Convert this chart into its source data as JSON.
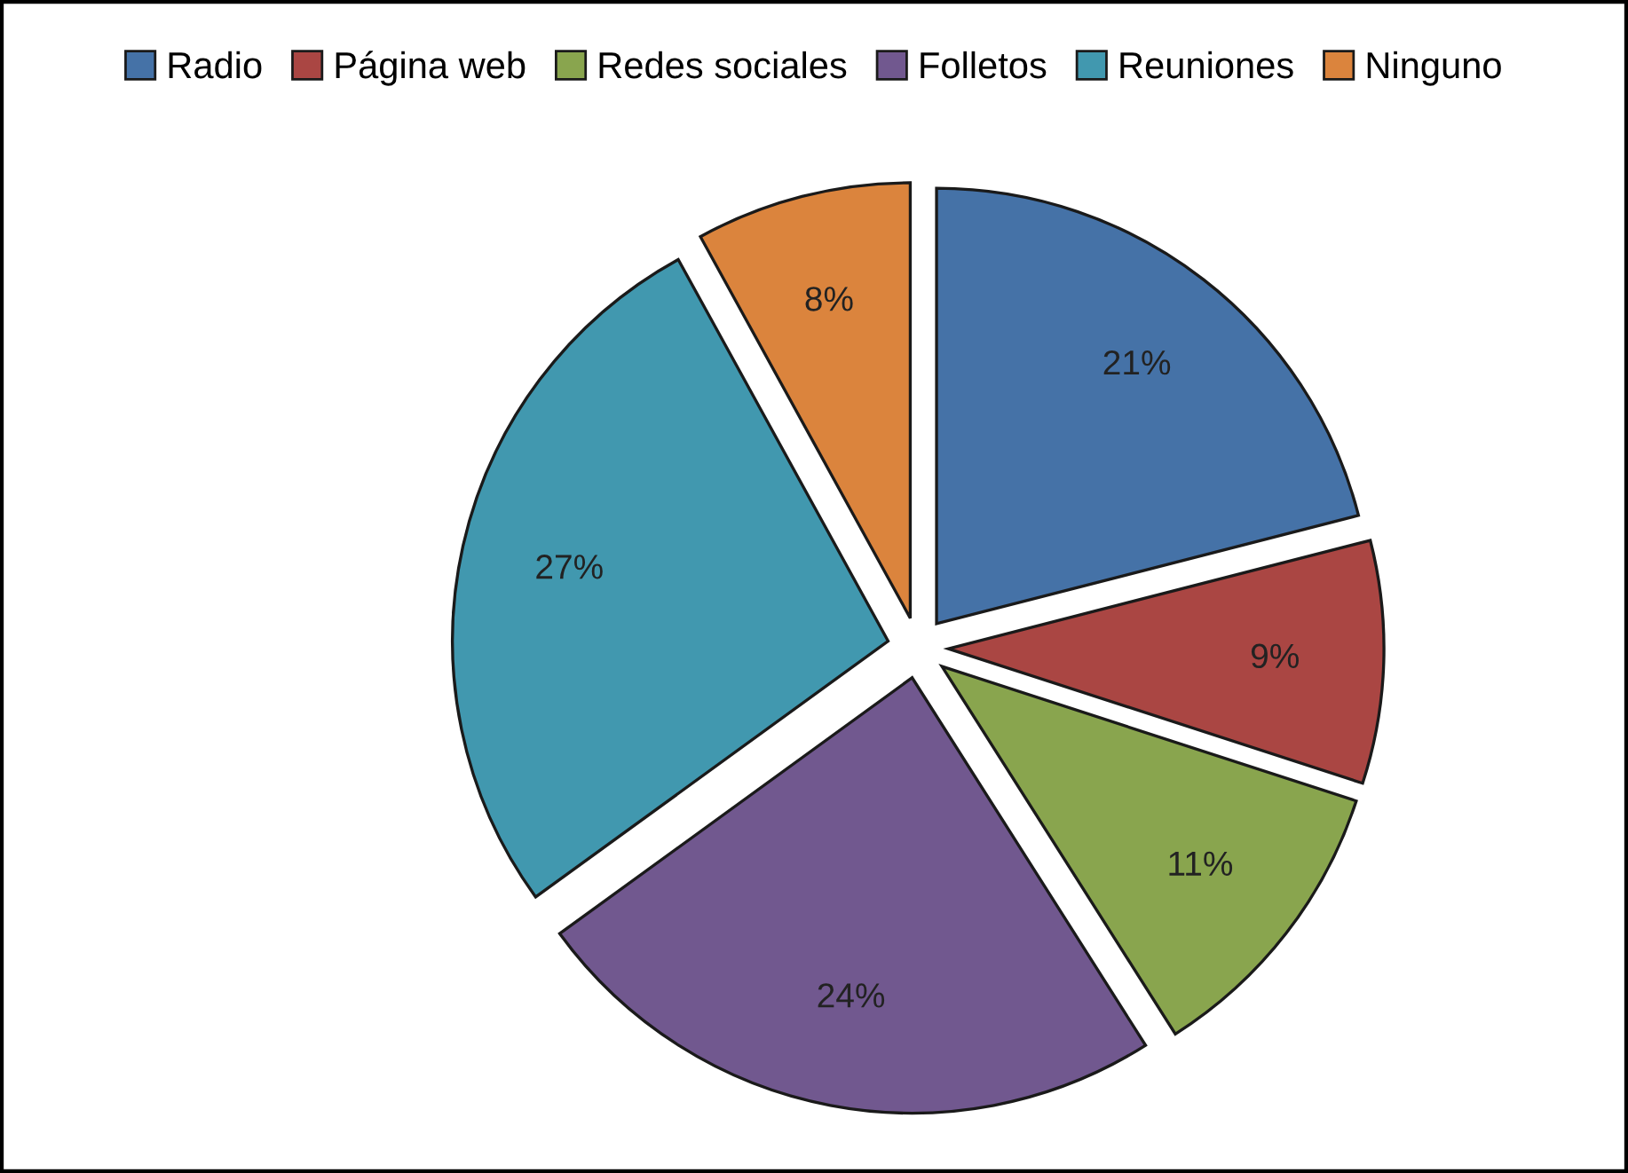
{
  "chart_data": {
    "type": "pie",
    "categories": [
      "Radio",
      "Página web",
      "Redes sociales",
      "Folletos",
      "Reuniones",
      "Ninguno"
    ],
    "values": [
      21,
      9,
      11,
      24,
      27,
      8
    ],
    "colors": [
      "#4572a7",
      "#aa4643",
      "#89a54e",
      "#71588f",
      "#4198af",
      "#db843d"
    ],
    "value_labels": [
      "21%",
      "9%",
      "11%",
      "24%",
      "27%",
      "8%"
    ],
    "legend": "top"
  }
}
